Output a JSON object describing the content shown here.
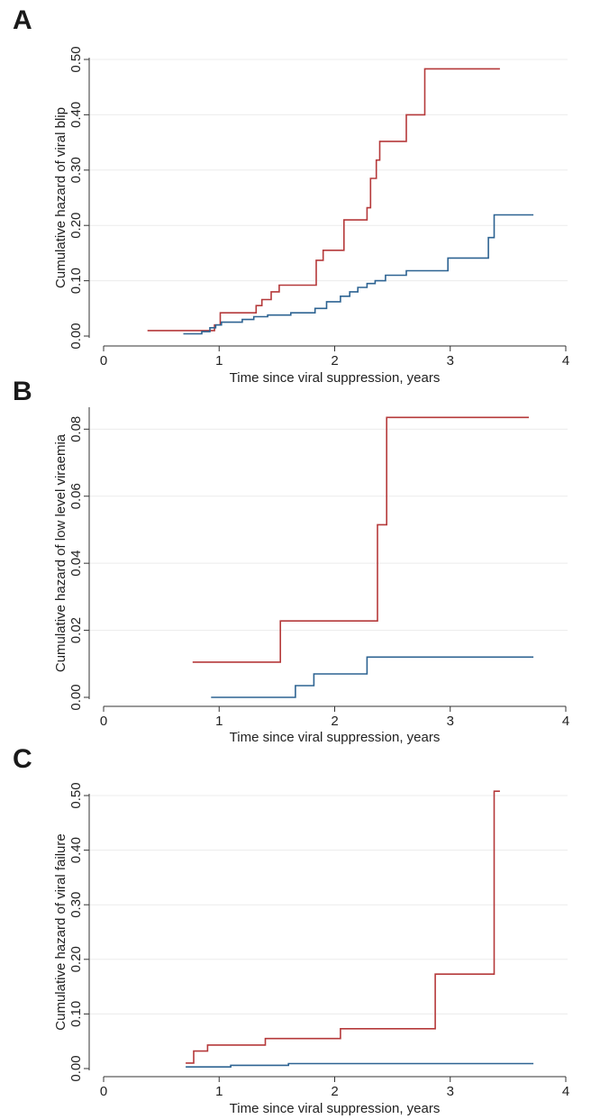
{
  "colors": {
    "red": "#b5393a",
    "blue": "#2d6392"
  },
  "chart_data": [
    {
      "panel_label": "A",
      "type": "line",
      "step": true,
      "xlabel": "Time since viral suppression, years",
      "ylabel": "Cumulative hazard of viral blip",
      "xlim": [
        0,
        4
      ],
      "ylim": [
        0,
        0.5
      ],
      "x_ticks": [
        0,
        1,
        2,
        3,
        4
      ],
      "x_tick_labels": [
        "0",
        "1",
        "2",
        "3",
        "4"
      ],
      "y_ticks": [
        0,
        0.1,
        0.2,
        0.3,
        0.4,
        0.5
      ],
      "y_tick_labels": [
        "0.00",
        "0.10",
        "0.20",
        "0.30",
        "0.40",
        "0.50"
      ],
      "grid": "horizontal",
      "series": [
        {
          "color": "red",
          "x": [
            0.38,
            0.96,
            1.01,
            1.32,
            1.37,
            1.45,
            1.52,
            1.84,
            1.9,
            2.08,
            2.28,
            2.31,
            2.36,
            2.39,
            2.62,
            2.78,
            3.43
          ],
          "y": [
            0.01,
            0.02,
            0.042,
            0.055,
            0.066,
            0.08,
            0.092,
            0.137,
            0.155,
            0.21,
            0.232,
            0.285,
            0.318,
            0.352,
            0.4,
            0.483,
            0.483
          ]
        },
        {
          "color": "blue",
          "x": [
            0.69,
            0.85,
            0.92,
            0.97,
            1.02,
            1.2,
            1.3,
            1.42,
            1.62,
            1.83,
            1.93,
            2.05,
            2.13,
            2.2,
            2.28,
            2.35,
            2.44,
            2.62,
            2.98,
            3.33,
            3.38,
            3.72
          ],
          "y": [
            0.004,
            0.008,
            0.015,
            0.02,
            0.025,
            0.03,
            0.035,
            0.038,
            0.042,
            0.05,
            0.062,
            0.072,
            0.08,
            0.088,
            0.095,
            0.1,
            0.11,
            0.118,
            0.141,
            0.178,
            0.219,
            0.219
          ]
        }
      ]
    },
    {
      "panel_label": "B",
      "type": "line",
      "step": true,
      "xlabel": "Time since viral suppression, years",
      "ylabel": "Cumulative hazard of low level viraemia",
      "xlim": [
        0,
        4
      ],
      "ylim": [
        0,
        0.086
      ],
      "x_ticks": [
        0,
        1,
        2,
        3,
        4
      ],
      "x_tick_labels": [
        "0",
        "1",
        "2",
        "3",
        "4"
      ],
      "y_ticks": [
        0,
        0.02,
        0.04,
        0.06,
        0.08
      ],
      "y_tick_labels": [
        "0.00",
        "0.02",
        "0.04",
        "0.06",
        "0.08"
      ],
      "grid": "horizontal",
      "series": [
        {
          "color": "red",
          "x": [
            0.77,
            1.53,
            2.37,
            2.45,
            3.68
          ],
          "y": [
            0.0105,
            0.0228,
            0.0515,
            0.0835,
            0.0835
          ]
        },
        {
          "color": "blue",
          "x": [
            0.93,
            1.66,
            1.82,
            2.28,
            3.72
          ],
          "y": [
            0.0,
            0.0035,
            0.007,
            0.012,
            0.012
          ]
        }
      ]
    },
    {
      "panel_label": "C",
      "type": "line",
      "step": true,
      "xlabel": "Time since viral suppression, years",
      "ylabel": "Cumulative hazard of viral failure",
      "xlim": [
        0,
        4
      ],
      "ylim": [
        0,
        0.5
      ],
      "x_ticks": [
        0,
        1,
        2,
        3,
        4
      ],
      "x_tick_labels": [
        "0",
        "1",
        "2",
        "3",
        "4"
      ],
      "y_ticks": [
        0,
        0.1,
        0.2,
        0.3,
        0.4,
        0.5
      ],
      "y_tick_labels": [
        "0.00",
        "0.10",
        "0.20",
        "0.30",
        "0.40",
        "0.50"
      ],
      "grid": "horizontal",
      "series": [
        {
          "color": "red",
          "x": [
            0.71,
            0.78,
            0.9,
            1.4,
            2.05,
            2.87,
            3.38,
            3.43
          ],
          "y": [
            0.01,
            0.032,
            0.043,
            0.055,
            0.073,
            0.173,
            0.508,
            0.508
          ]
        },
        {
          "color": "blue",
          "x": [
            0.71,
            1.1,
            1.6,
            3.72
          ],
          "y": [
            0.003,
            0.006,
            0.009,
            0.009
          ]
        }
      ]
    }
  ]
}
